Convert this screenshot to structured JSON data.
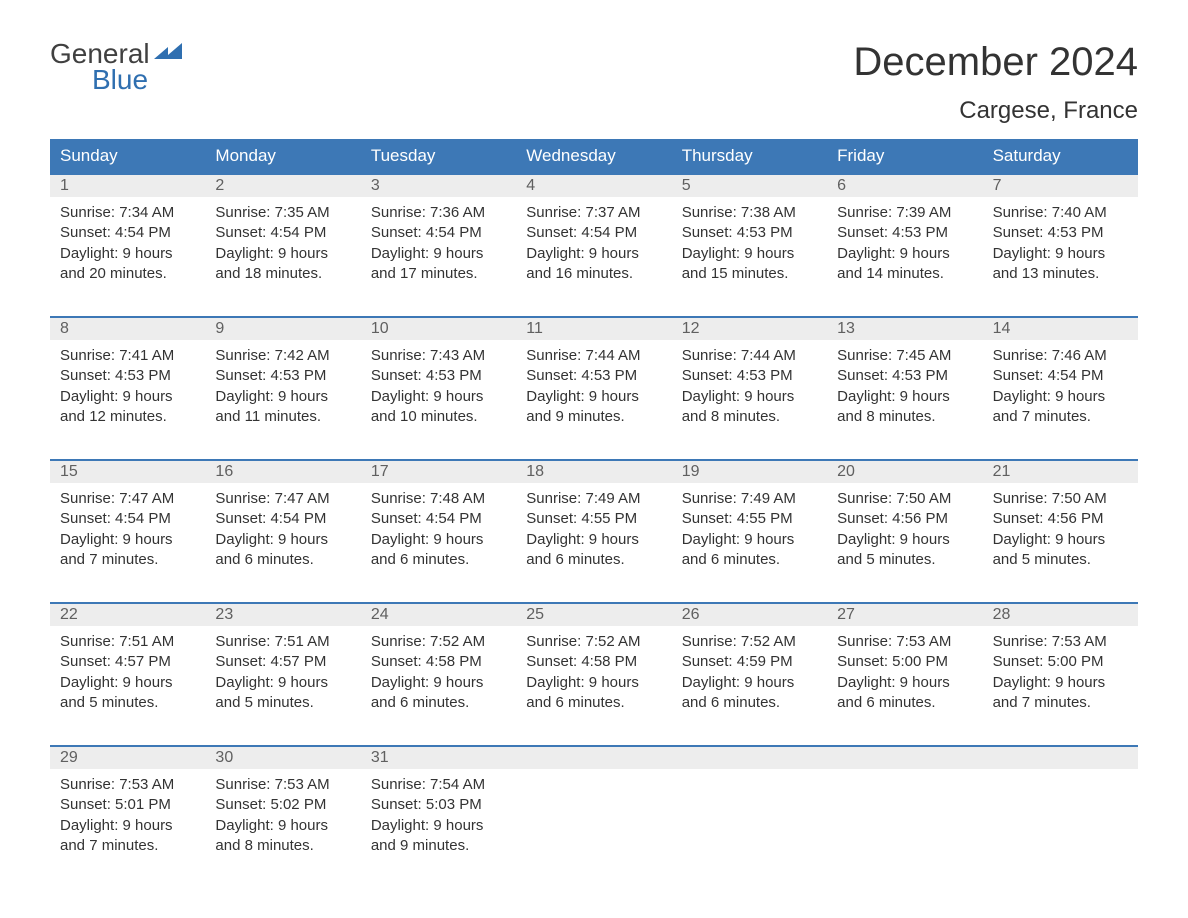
{
  "logo": {
    "line1": "General",
    "line2": "Blue",
    "line1_color": "#404040",
    "line2_color": "#2f6fb0",
    "flag_color": "#2f6fb0"
  },
  "title": {
    "month": "December 2024",
    "location": "Cargese, France"
  },
  "colors": {
    "header_bg": "#3d78b6",
    "header_text": "#ffffff",
    "daynum_bg": "#ededed",
    "daynum_text": "#606060",
    "body_text": "#333333",
    "week_border": "#3d78b6",
    "page_bg": "#ffffff"
  },
  "fonts": {
    "title_size_pt": 30,
    "location_size_pt": 18,
    "header_size_pt": 13,
    "body_size_pt": 11
  },
  "layout": {
    "columns": 7,
    "rows": 5,
    "cell_body_min_lines": 4
  },
  "day_names": [
    "Sunday",
    "Monday",
    "Tuesday",
    "Wednesday",
    "Thursday",
    "Friday",
    "Saturday"
  ],
  "weeks": [
    [
      {
        "num": "1",
        "sunrise": "Sunrise: 7:34 AM",
        "sunset": "Sunset: 4:54 PM",
        "daylight1": "Daylight: 9 hours",
        "daylight2": "and 20 minutes."
      },
      {
        "num": "2",
        "sunrise": "Sunrise: 7:35 AM",
        "sunset": "Sunset: 4:54 PM",
        "daylight1": "Daylight: 9 hours",
        "daylight2": "and 18 minutes."
      },
      {
        "num": "3",
        "sunrise": "Sunrise: 7:36 AM",
        "sunset": "Sunset: 4:54 PM",
        "daylight1": "Daylight: 9 hours",
        "daylight2": "and 17 minutes."
      },
      {
        "num": "4",
        "sunrise": "Sunrise: 7:37 AM",
        "sunset": "Sunset: 4:54 PM",
        "daylight1": "Daylight: 9 hours",
        "daylight2": "and 16 minutes."
      },
      {
        "num": "5",
        "sunrise": "Sunrise: 7:38 AM",
        "sunset": "Sunset: 4:53 PM",
        "daylight1": "Daylight: 9 hours",
        "daylight2": "and 15 minutes."
      },
      {
        "num": "6",
        "sunrise": "Sunrise: 7:39 AM",
        "sunset": "Sunset: 4:53 PM",
        "daylight1": "Daylight: 9 hours",
        "daylight2": "and 14 minutes."
      },
      {
        "num": "7",
        "sunrise": "Sunrise: 7:40 AM",
        "sunset": "Sunset: 4:53 PM",
        "daylight1": "Daylight: 9 hours",
        "daylight2": "and 13 minutes."
      }
    ],
    [
      {
        "num": "8",
        "sunrise": "Sunrise: 7:41 AM",
        "sunset": "Sunset: 4:53 PM",
        "daylight1": "Daylight: 9 hours",
        "daylight2": "and 12 minutes."
      },
      {
        "num": "9",
        "sunrise": "Sunrise: 7:42 AM",
        "sunset": "Sunset: 4:53 PM",
        "daylight1": "Daylight: 9 hours",
        "daylight2": "and 11 minutes."
      },
      {
        "num": "10",
        "sunrise": "Sunrise: 7:43 AM",
        "sunset": "Sunset: 4:53 PM",
        "daylight1": "Daylight: 9 hours",
        "daylight2": "and 10 minutes."
      },
      {
        "num": "11",
        "sunrise": "Sunrise: 7:44 AM",
        "sunset": "Sunset: 4:53 PM",
        "daylight1": "Daylight: 9 hours",
        "daylight2": "and 9 minutes."
      },
      {
        "num": "12",
        "sunrise": "Sunrise: 7:44 AM",
        "sunset": "Sunset: 4:53 PM",
        "daylight1": "Daylight: 9 hours",
        "daylight2": "and 8 minutes."
      },
      {
        "num": "13",
        "sunrise": "Sunrise: 7:45 AM",
        "sunset": "Sunset: 4:53 PM",
        "daylight1": "Daylight: 9 hours",
        "daylight2": "and 8 minutes."
      },
      {
        "num": "14",
        "sunrise": "Sunrise: 7:46 AM",
        "sunset": "Sunset: 4:54 PM",
        "daylight1": "Daylight: 9 hours",
        "daylight2": "and 7 minutes."
      }
    ],
    [
      {
        "num": "15",
        "sunrise": "Sunrise: 7:47 AM",
        "sunset": "Sunset: 4:54 PM",
        "daylight1": "Daylight: 9 hours",
        "daylight2": "and 7 minutes."
      },
      {
        "num": "16",
        "sunrise": "Sunrise: 7:47 AM",
        "sunset": "Sunset: 4:54 PM",
        "daylight1": "Daylight: 9 hours",
        "daylight2": "and 6 minutes."
      },
      {
        "num": "17",
        "sunrise": "Sunrise: 7:48 AM",
        "sunset": "Sunset: 4:54 PM",
        "daylight1": "Daylight: 9 hours",
        "daylight2": "and 6 minutes."
      },
      {
        "num": "18",
        "sunrise": "Sunrise: 7:49 AM",
        "sunset": "Sunset: 4:55 PM",
        "daylight1": "Daylight: 9 hours",
        "daylight2": "and 6 minutes."
      },
      {
        "num": "19",
        "sunrise": "Sunrise: 7:49 AM",
        "sunset": "Sunset: 4:55 PM",
        "daylight1": "Daylight: 9 hours",
        "daylight2": "and 6 minutes."
      },
      {
        "num": "20",
        "sunrise": "Sunrise: 7:50 AM",
        "sunset": "Sunset: 4:56 PM",
        "daylight1": "Daylight: 9 hours",
        "daylight2": "and 5 minutes."
      },
      {
        "num": "21",
        "sunrise": "Sunrise: 7:50 AM",
        "sunset": "Sunset: 4:56 PM",
        "daylight1": "Daylight: 9 hours",
        "daylight2": "and 5 minutes."
      }
    ],
    [
      {
        "num": "22",
        "sunrise": "Sunrise: 7:51 AM",
        "sunset": "Sunset: 4:57 PM",
        "daylight1": "Daylight: 9 hours",
        "daylight2": "and 5 minutes."
      },
      {
        "num": "23",
        "sunrise": "Sunrise: 7:51 AM",
        "sunset": "Sunset: 4:57 PM",
        "daylight1": "Daylight: 9 hours",
        "daylight2": "and 5 minutes."
      },
      {
        "num": "24",
        "sunrise": "Sunrise: 7:52 AM",
        "sunset": "Sunset: 4:58 PM",
        "daylight1": "Daylight: 9 hours",
        "daylight2": "and 6 minutes."
      },
      {
        "num": "25",
        "sunrise": "Sunrise: 7:52 AM",
        "sunset": "Sunset: 4:58 PM",
        "daylight1": "Daylight: 9 hours",
        "daylight2": "and 6 minutes."
      },
      {
        "num": "26",
        "sunrise": "Sunrise: 7:52 AM",
        "sunset": "Sunset: 4:59 PM",
        "daylight1": "Daylight: 9 hours",
        "daylight2": "and 6 minutes."
      },
      {
        "num": "27",
        "sunrise": "Sunrise: 7:53 AM",
        "sunset": "Sunset: 5:00 PM",
        "daylight1": "Daylight: 9 hours",
        "daylight2": "and 6 minutes."
      },
      {
        "num": "28",
        "sunrise": "Sunrise: 7:53 AM",
        "sunset": "Sunset: 5:00 PM",
        "daylight1": "Daylight: 9 hours",
        "daylight2": "and 7 minutes."
      }
    ],
    [
      {
        "num": "29",
        "sunrise": "Sunrise: 7:53 AM",
        "sunset": "Sunset: 5:01 PM",
        "daylight1": "Daylight: 9 hours",
        "daylight2": "and 7 minutes."
      },
      {
        "num": "30",
        "sunrise": "Sunrise: 7:53 AM",
        "sunset": "Sunset: 5:02 PM",
        "daylight1": "Daylight: 9 hours",
        "daylight2": "and 8 minutes."
      },
      {
        "num": "31",
        "sunrise": "Sunrise: 7:54 AM",
        "sunset": "Sunset: 5:03 PM",
        "daylight1": "Daylight: 9 hours",
        "daylight2": "and 9 minutes."
      },
      {
        "empty": true
      },
      {
        "empty": true
      },
      {
        "empty": true
      },
      {
        "empty": true
      }
    ]
  ]
}
